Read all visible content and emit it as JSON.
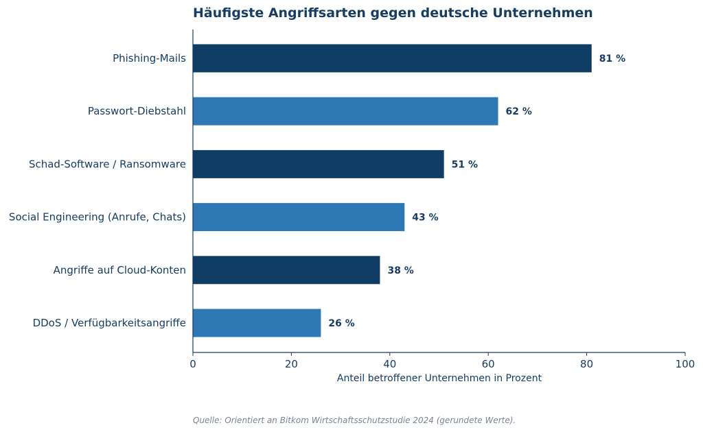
{
  "chart_data": {
    "type": "bar",
    "orientation": "horizontal",
    "title": "Häufigste Angriffsarten gegen deutsche Unternehmen",
    "categories": [
      "Phishing-Mails",
      "Passwort-Diebstahl",
      "Schad-Software / Ransomware",
      "Social Engineering (Anrufe, Chats)",
      "Angriffe auf Cloud-Konten",
      "DDoS / Verfügbarkeitsangriffe"
    ],
    "values": [
      81,
      62,
      51,
      43,
      38,
      26
    ],
    "data_labels": [
      "81 %",
      "62 %",
      "51 %",
      "43 %",
      "38 %",
      "26 %"
    ],
    "xlabel": "Anteil betroffener Unternehmen in Prozent",
    "ylabel": "",
    "xlim": [
      0,
      100
    ],
    "xticks": [
      0,
      20,
      40,
      60,
      80,
      100
    ],
    "grid": false,
    "colors": [
      "#0f3d63",
      "#2e78b6"
    ],
    "axis_color": "#163d63",
    "source": "Quelle: Orientiert an Bitkom Wirtschaftsschutzstudie 2024 (gerundete Werte)."
  }
}
